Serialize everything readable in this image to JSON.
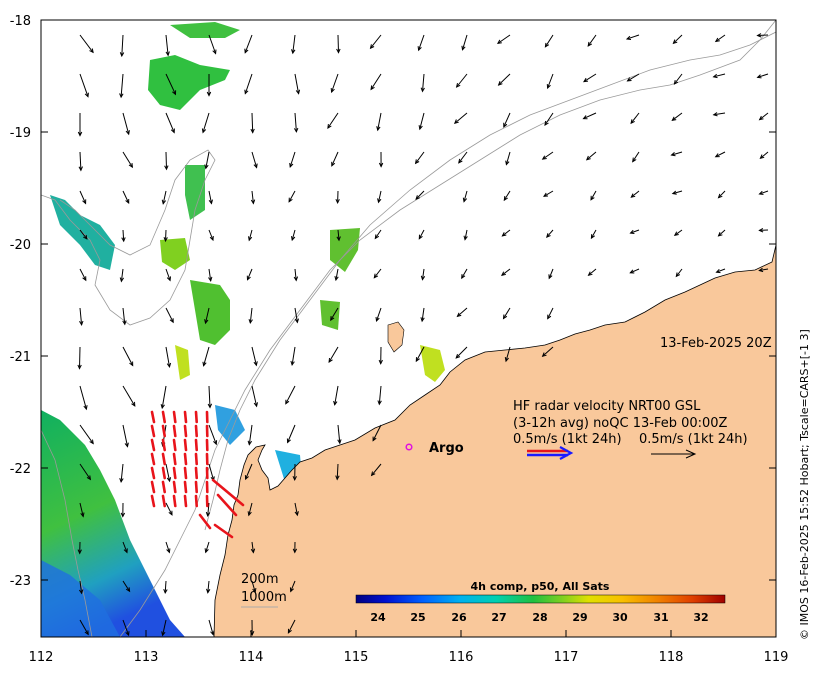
{
  "map": {
    "xticks": [
      "112",
      "113",
      "114",
      "115",
      "116",
      "117",
      "118",
      "119"
    ],
    "yticks": [
      "-18",
      "-19",
      "-20",
      "-21",
      "-22",
      "-23"
    ],
    "timestamp": "13-Feb-2025 20Z",
    "legend": {
      "line1": "HF radar velocity  NRT00 GSL",
      "line2": "(3-12h avg) noQC 13-Feb 00:00Z",
      "line3a": "0.5m/s (1kt 24h)",
      "line3b": "0.5m/s (1kt 24h)"
    },
    "argo_label": "Argo",
    "depth_200": "200m",
    "depth_1000": "1000m",
    "colorbar": {
      "title": "4h comp, p50, All Sats",
      "ticks": [
        "24",
        "25",
        "26",
        "27",
        "28",
        "29",
        "30",
        "31",
        "32"
      ]
    },
    "credit": "© IMOS 16-Feb-2025 15:52 Hobart; Tscale=CARS+[-1 3]",
    "colors": {
      "land": "#f9c89b",
      "radar": "#e8141b",
      "vector_blue": "#1a1aff",
      "argo": "#e010e0"
    }
  }
}
